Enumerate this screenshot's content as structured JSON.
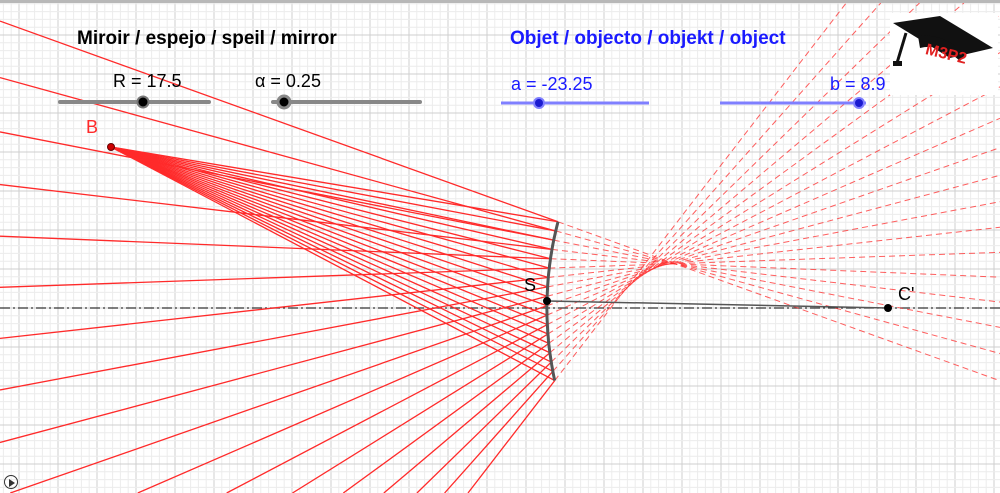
{
  "mirror_title": "Miroir / espejo / speil / mirror",
  "object_title": "Objet / objecto / objekt / object",
  "sliders": {
    "R": {
      "label": "R = 17.5",
      "value": 17.5,
      "fraction": 0.55
    },
    "alpha": {
      "label": "α = 0.25",
      "value": 0.25,
      "fraction": 0.0
    },
    "a": {
      "label": "a = -23.25",
      "value": -23.25,
      "fraction": 0.25
    },
    "b": {
      "label": "b = 8.9",
      "value": 8.9,
      "fraction": 0.95
    }
  },
  "points": {
    "B": "B",
    "S": "S",
    "C": "C'"
  },
  "logo": {
    "text": "M3P2",
    "icon": "graduation-cap-icon"
  },
  "play_icon": "play-icon",
  "colors": {
    "ray": "#ff2a2a",
    "mirror_title": "#000000",
    "object_title": "#1a1aff",
    "object_slider": "#7f7fff",
    "mirror": "#555555"
  }
}
